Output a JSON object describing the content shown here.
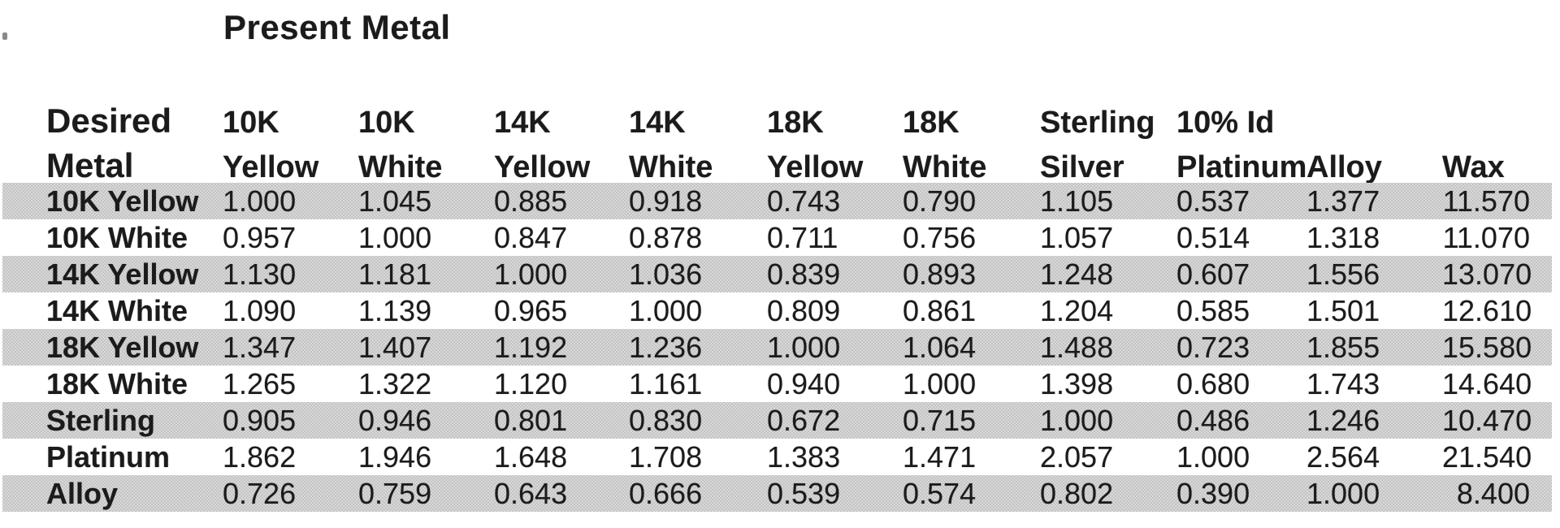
{
  "title": "Present Metal",
  "corner_header": {
    "line1": "Desired",
    "line2": "Metal"
  },
  "columns": [
    {
      "line1": "10K",
      "line2": "Yellow"
    },
    {
      "line1": "10K",
      "line2": "White"
    },
    {
      "line1": "14K",
      "line2": "Yellow"
    },
    {
      "line1": "14K",
      "line2": "White"
    },
    {
      "line1": "18K",
      "line2": "Yellow"
    },
    {
      "line1": "18K",
      "line2": "White"
    },
    {
      "line1": "Sterling",
      "line2": "Silver"
    },
    {
      "line1": "10% Id",
      "line2": "Platinum"
    },
    {
      "line1": "",
      "line2": "Alloy"
    },
    {
      "line1": "",
      "line2": "Wax"
    }
  ],
  "rows": [
    {
      "label": "10K Yellow",
      "shaded": true,
      "values": [
        "1.000",
        "1.045",
        "0.885",
        "0.918",
        "0.743",
        "0.790",
        "1.105",
        "0.537",
        "1.377",
        "11.570"
      ]
    },
    {
      "label": "10K White",
      "shaded": false,
      "values": [
        "0.957",
        "1.000",
        "0.847",
        "0.878",
        "0.711",
        "0.756",
        "1.057",
        "0.514",
        "1.318",
        "11.070"
      ]
    },
    {
      "label": "14K Yellow",
      "shaded": true,
      "values": [
        "1.130",
        "1.181",
        "1.000",
        "1.036",
        "0.839",
        "0.893",
        "1.248",
        "0.607",
        "1.556",
        "13.070"
      ]
    },
    {
      "label": "14K White",
      "shaded": false,
      "values": [
        "1.090",
        "1.139",
        "0.965",
        "1.000",
        "0.809",
        "0.861",
        "1.204",
        "0.585",
        "1.501",
        "12.610"
      ]
    },
    {
      "label": "18K Yellow",
      "shaded": true,
      "values": [
        "1.347",
        "1.407",
        "1.192",
        "1.236",
        "1.000",
        "1.064",
        "1.488",
        "0.723",
        "1.855",
        "15.580"
      ]
    },
    {
      "label": "18K White",
      "shaded": false,
      "values": [
        "1.265",
        "1.322",
        "1.120",
        "1.161",
        "0.940",
        "1.000",
        "1.398",
        "0.680",
        "1.743",
        "14.640"
      ]
    },
    {
      "label": "Sterling",
      "shaded": true,
      "values": [
        "0.905",
        "0.946",
        "0.801",
        "0.830",
        "0.672",
        "0.715",
        "1.000",
        "0.486",
        "1.246",
        "10.470"
      ]
    },
    {
      "label": "Platinum",
      "shaded": false,
      "values": [
        "1.862",
        "1.946",
        "1.648",
        "1.708",
        "1.383",
        "1.471",
        "2.057",
        "1.000",
        "2.564",
        "21.540"
      ]
    },
    {
      "label": "Alloy",
      "shaded": true,
      "values": [
        "0.726",
        "0.759",
        "0.643",
        "0.666",
        "0.539",
        "0.574",
        "0.802",
        "0.390",
        "1.000",
        "8.400"
      ]
    }
  ],
  "colors": {
    "band": "#dcdcdc",
    "band_dot": "#c3c3c3",
    "text": "#1b1b1b"
  }
}
